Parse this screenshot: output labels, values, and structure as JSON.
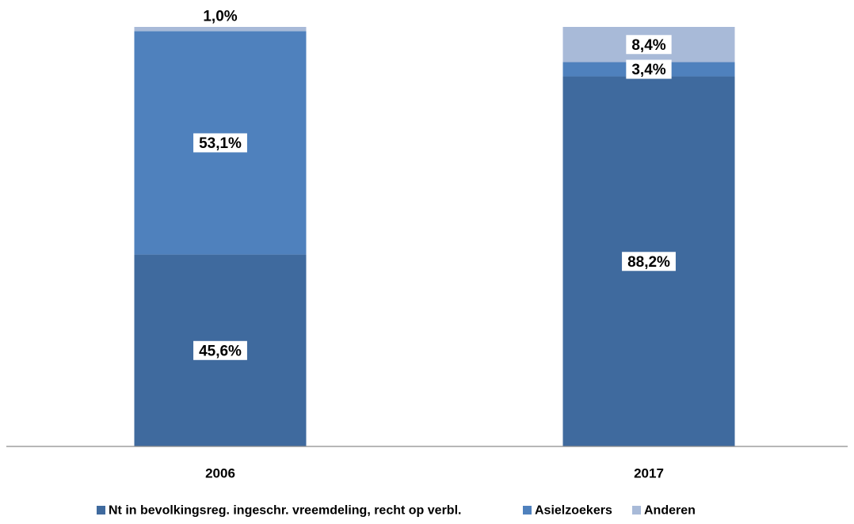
{
  "chart_data": {
    "type": "bar",
    "stacked": true,
    "percent_stacked": true,
    "categories": [
      "2006",
      "2017"
    ],
    "series": [
      {
        "name": "Nt in bevolkingsreg. ingeschr. vreemdeling, recht op verbl.",
        "values": [
          45.6,
          88.2
        ],
        "labels": [
          "45,6%",
          "88,2%"
        ],
        "color": "#3F6A9E"
      },
      {
        "name": "Asielzoekers",
        "values": [
          53.1,
          3.4
        ],
        "labels": [
          "53,1%",
          "3,4%"
        ],
        "color": "#4F81BD"
      },
      {
        "name": "Anderen",
        "values": [
          1.0,
          8.4
        ],
        "labels": [
          "1,0%",
          "8,4%"
        ],
        "color": "#A8BAD8"
      }
    ],
    "ylim": [
      0,
      100
    ],
    "grid": false,
    "legend_position": "bottom"
  }
}
